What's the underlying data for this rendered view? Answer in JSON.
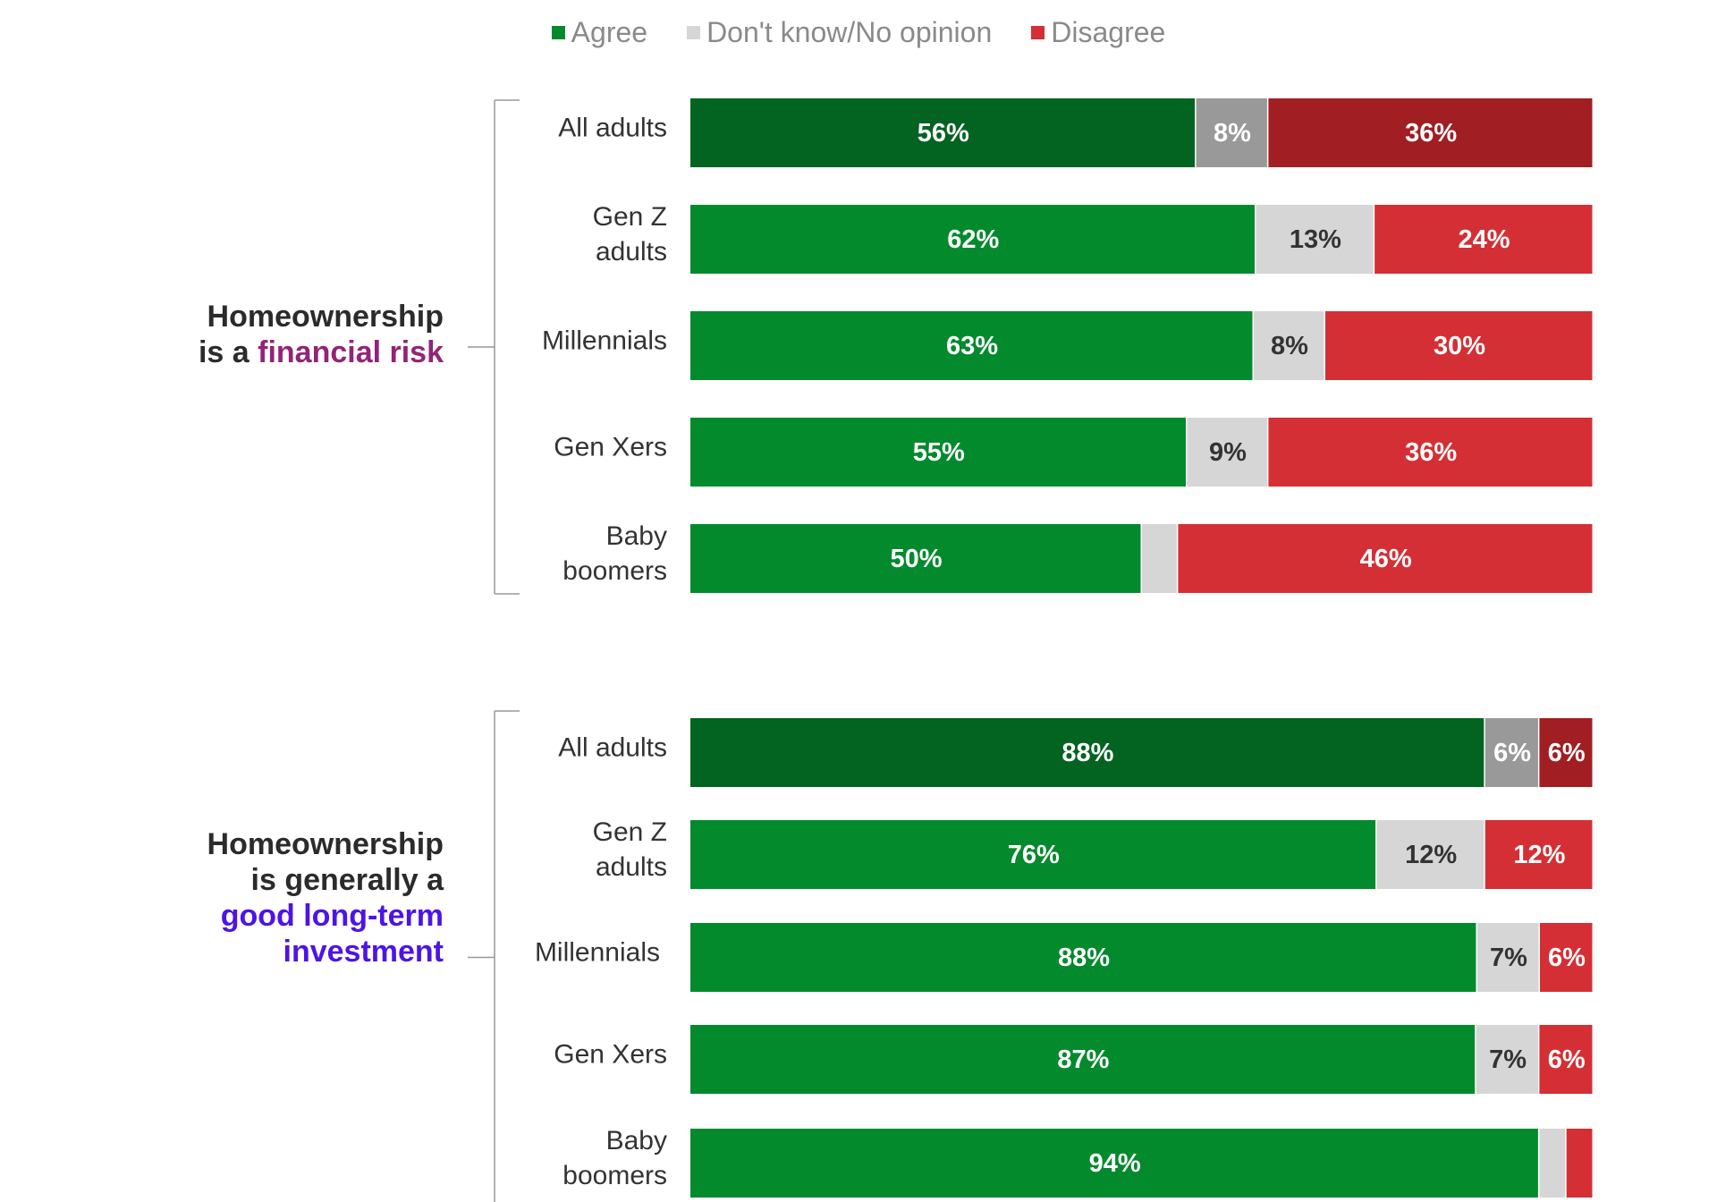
{
  "chart_data": {
    "type": "bar",
    "orientation": "horizontal",
    "stacked": true,
    "legend_position": "top",
    "grid": false,
    "xlim": [
      0,
      100
    ],
    "legend": [
      {
        "key": "agree",
        "label": "Agree"
      },
      {
        "key": "dontknow",
        "label": "Don't know/No opinion"
      },
      {
        "key": "disagree",
        "label": "Disagree"
      }
    ],
    "colors": {
      "agree": "#038a2d",
      "agree_total": "#036321",
      "dontknow": "#d6d6d6",
      "dontknow_total": "#999999",
      "disagree": "#d42f34",
      "disagree_total": "#a11e22",
      "label_light": "#ffffff",
      "label_dark": "#333333",
      "bracket": "#999999",
      "title_dark": "#2b2b2b",
      "title_accent_risk": "#922478",
      "title_accent_investment": "#4d14e6"
    },
    "groups": [
      {
        "title_lines": [
          [
            {
              "text": "Homeownership",
              "accent": false
            }
          ],
          [
            {
              "text": "is a ",
              "accent": false
            },
            {
              "text": "financial risk",
              "accent": true
            }
          ]
        ],
        "accent_key": "title_accent_risk",
        "rows": [
          {
            "category": "All adults",
            "agree": 56,
            "dontknow": 8,
            "disagree": 36,
            "total": true,
            "labels": {
              "agree": "56%",
              "dontknow": "8%",
              "disagree": "36%"
            }
          },
          {
            "category": "Gen Z adults",
            "agree": 62,
            "dontknow": 13,
            "disagree": 24,
            "total": false,
            "labels": {
              "agree": "62%",
              "dontknow": "13%",
              "disagree": "24%"
            }
          },
          {
            "category": "Millennials",
            "agree": 63,
            "dontknow": 8,
            "disagree": 30,
            "total": false,
            "labels": {
              "agree": "63%",
              "dontknow": "8%",
              "disagree": "30%"
            }
          },
          {
            "category": "Gen Xers",
            "agree": 55,
            "dontknow": 9,
            "disagree": 36,
            "total": false,
            "labels": {
              "agree": "55%",
              "dontknow": "9%",
              "disagree": "36%"
            }
          },
          {
            "category": "Baby boomers",
            "agree": 50,
            "dontknow": 4,
            "disagree": 46,
            "total": false,
            "labels": {
              "agree": "50%",
              "dontknow": "",
              "disagree": "46%"
            }
          }
        ]
      },
      {
        "title_lines": [
          [
            {
              "text": "Homeownership",
              "accent": false
            }
          ],
          [
            {
              "text": "is generally a",
              "accent": false
            }
          ],
          [
            {
              "text": "good long-term",
              "accent": true
            }
          ],
          [
            {
              "text": "investment",
              "accent": true
            }
          ]
        ],
        "accent_key": "title_accent_investment",
        "rows": [
          {
            "category": "All adults",
            "agree": 88,
            "dontknow": 6,
            "disagree": 6,
            "total": true,
            "labels": {
              "agree": "88%",
              "dontknow": "6%",
              "disagree": "6%"
            }
          },
          {
            "category": "Gen Z adults",
            "agree": 76,
            "dontknow": 12,
            "disagree": 12,
            "total": false,
            "labels": {
              "agree": "76%",
              "dontknow": "12%",
              "disagree": "12%"
            }
          },
          {
            "category": "Millennials",
            "agree": 88,
            "dontknow": 7,
            "disagree": 6,
            "total": false,
            "labels": {
              "agree": "88%",
              "dontknow": "7%",
              "disagree": "6%"
            }
          },
          {
            "category": "Gen Xers",
            "agree": 87,
            "dontknow": 7,
            "disagree": 6,
            "total": false,
            "labels": {
              "agree": "87%",
              "dontknow": "7%",
              "disagree": "6%"
            }
          },
          {
            "category": "Baby boomers",
            "agree": 94,
            "dontknow": 3,
            "disagree": 3,
            "total": false,
            "labels": {
              "agree": "94%",
              "dontknow": "",
              "disagree": ""
            }
          }
        ]
      }
    ]
  }
}
